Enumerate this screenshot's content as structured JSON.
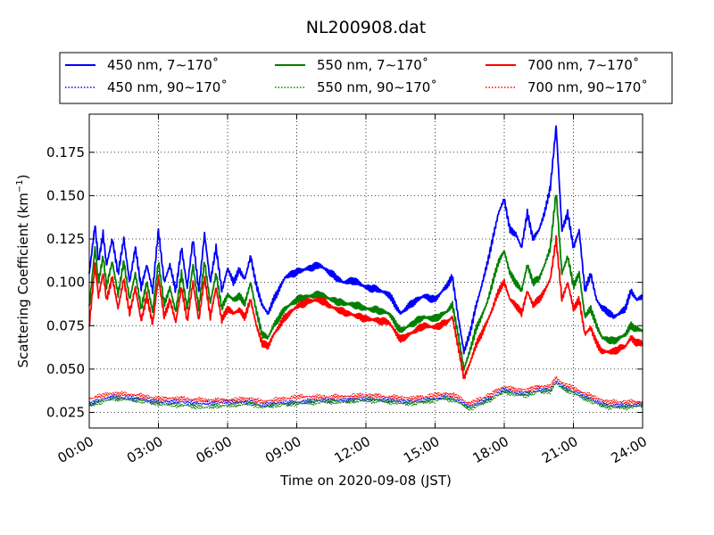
{
  "chart_data": {
    "type": "line",
    "title": "NL200908.dat",
    "xlabel": "Time on 2020-09-08 (JST)",
    "ylabel": "Scattering Coefficient (km",
    "ylabel_unit_exponent": "−1",
    "ylabel_close": ")",
    "xlim": [
      0,
      24
    ],
    "ylim": [
      0.016,
      0.197
    ],
    "x_ticks": [
      0,
      3,
      6,
      9,
      12,
      15,
      18,
      21,
      24
    ],
    "x_tick_labels": [
      "00:00",
      "03:00",
      "06:00",
      "09:00",
      "12:00",
      "15:00",
      "18:00",
      "21:00",
      "24:00"
    ],
    "y_ticks": [
      0.025,
      0.05,
      0.075,
      0.1,
      0.125,
      0.15,
      0.175
    ],
    "y_tick_labels": [
      "0.025",
      "0.050",
      "0.075",
      "0.100",
      "0.125",
      "0.150",
      "0.175"
    ],
    "grid": true,
    "legend_position": "top",
    "series": [
      {
        "name": "450 nm, 7∼170˚",
        "color": "#0000ff",
        "style": "solid",
        "x": [
          0,
          0.25,
          0.4,
          0.6,
          0.75,
          1,
          1.25,
          1.5,
          1.75,
          2,
          2.25,
          2.5,
          2.75,
          3,
          3.25,
          3.5,
          3.75,
          4,
          4.25,
          4.5,
          4.75,
          5,
          5.25,
          5.5,
          5.75,
          6,
          6.25,
          6.5,
          6.75,
          7,
          7.25,
          7.5,
          7.75,
          8,
          8.5,
          9,
          9.5,
          10,
          10.5,
          11,
          11.5,
          12,
          12.5,
          13,
          13.5,
          14,
          14.5,
          15,
          15.5,
          15.75,
          16,
          16.25,
          16.5,
          16.75,
          17,
          17.25,
          17.5,
          17.75,
          18,
          18.25,
          18.5,
          18.75,
          19,
          19.25,
          19.5,
          19.75,
          20,
          20.25,
          20.5,
          20.75,
          21,
          21.25,
          21.5,
          21.75,
          22,
          22.25,
          22.5,
          22.75,
          23,
          23.25,
          23.5,
          23.75,
          24
        ],
        "y": [
          0.105,
          0.133,
          0.112,
          0.128,
          0.11,
          0.125,
          0.105,
          0.125,
          0.1,
          0.12,
          0.097,
          0.11,
          0.095,
          0.13,
          0.1,
          0.11,
          0.095,
          0.12,
          0.097,
          0.125,
          0.095,
          0.128,
          0.1,
          0.12,
          0.095,
          0.108,
          0.1,
          0.107,
          0.102,
          0.115,
          0.098,
          0.087,
          0.082,
          0.09,
          0.103,
          0.106,
          0.108,
          0.11,
          0.105,
          0.1,
          0.101,
          0.097,
          0.096,
          0.093,
          0.082,
          0.088,
          0.092,
          0.09,
          0.098,
          0.103,
          0.08,
          0.06,
          0.07,
          0.085,
          0.097,
          0.11,
          0.125,
          0.14,
          0.148,
          0.13,
          0.128,
          0.12,
          0.14,
          0.125,
          0.13,
          0.14,
          0.155,
          0.19,
          0.13,
          0.14,
          0.12,
          0.13,
          0.095,
          0.105,
          0.09,
          0.085,
          0.083,
          0.08,
          0.082,
          0.085,
          0.095,
          0.09,
          0.092
        ]
      },
      {
        "name": "550 nm, 7∼170˚",
        "color": "#008000",
        "style": "solid",
        "x": [
          0,
          0.25,
          0.4,
          0.6,
          0.75,
          1,
          1.25,
          1.5,
          1.75,
          2,
          2.25,
          2.5,
          2.75,
          3,
          3.25,
          3.5,
          3.75,
          4,
          4.25,
          4.5,
          4.75,
          5,
          5.25,
          5.5,
          5.75,
          6,
          6.25,
          6.5,
          6.75,
          7,
          7.25,
          7.5,
          7.75,
          8,
          8.5,
          9,
          9.5,
          10,
          10.5,
          11,
          11.5,
          12,
          12.5,
          13,
          13.5,
          14,
          14.5,
          15,
          15.5,
          15.75,
          16,
          16.25,
          16.5,
          16.75,
          17,
          17.25,
          17.5,
          17.75,
          18,
          18.25,
          18.5,
          18.75,
          19,
          19.25,
          19.5,
          19.75,
          20,
          20.25,
          20.5,
          20.75,
          21,
          21.25,
          21.5,
          21.75,
          22,
          22.25,
          22.5,
          22.75,
          23,
          23.25,
          23.5,
          23.75,
          24
        ],
        "y": [
          0.085,
          0.12,
          0.1,
          0.115,
          0.098,
          0.112,
          0.093,
          0.112,
          0.09,
          0.105,
          0.085,
          0.1,
          0.083,
          0.112,
          0.087,
          0.097,
          0.083,
          0.105,
          0.085,
          0.11,
          0.085,
          0.112,
          0.088,
          0.105,
          0.085,
          0.093,
          0.09,
          0.092,
          0.088,
          0.1,
          0.083,
          0.07,
          0.068,
          0.075,
          0.085,
          0.09,
          0.092,
          0.093,
          0.09,
          0.088,
          0.087,
          0.085,
          0.084,
          0.082,
          0.072,
          0.076,
          0.08,
          0.079,
          0.083,
          0.087,
          0.07,
          0.05,
          0.06,
          0.072,
          0.08,
          0.088,
          0.1,
          0.112,
          0.118,
          0.105,
          0.1,
          0.095,
          0.11,
          0.1,
          0.102,
          0.11,
          0.12,
          0.152,
          0.105,
          0.115,
          0.098,
          0.105,
          0.08,
          0.085,
          0.075,
          0.068,
          0.067,
          0.066,
          0.068,
          0.07,
          0.075,
          0.073,
          0.072
        ]
      },
      {
        "name": "700 nm, 7∼170˚",
        "color": "#ff0000",
        "style": "solid",
        "x": [
          0,
          0.25,
          0.4,
          0.6,
          0.75,
          1,
          1.25,
          1.5,
          1.75,
          2,
          2.25,
          2.5,
          2.75,
          3,
          3.25,
          3.5,
          3.75,
          4,
          4.25,
          4.5,
          4.75,
          5,
          5.25,
          5.5,
          5.75,
          6,
          6.25,
          6.5,
          6.75,
          7,
          7.25,
          7.5,
          7.75,
          8,
          8.5,
          9,
          9.5,
          10,
          10.5,
          11,
          11.5,
          12,
          12.5,
          13,
          13.5,
          14,
          14.5,
          15,
          15.5,
          15.75,
          16,
          16.25,
          16.5,
          16.75,
          17,
          17.25,
          17.5,
          17.75,
          18,
          18.25,
          18.5,
          18.75,
          19,
          19.25,
          19.5,
          19.75,
          20,
          20.25,
          20.5,
          20.75,
          21,
          21.25,
          21.5,
          21.75,
          22,
          22.25,
          22.5,
          22.75,
          23,
          23.25,
          23.5,
          23.75,
          24
        ],
        "y": [
          0.075,
          0.11,
          0.092,
          0.105,
          0.09,
          0.103,
          0.085,
          0.102,
          0.082,
          0.097,
          0.078,
          0.092,
          0.076,
          0.103,
          0.08,
          0.09,
          0.077,
          0.097,
          0.078,
          0.1,
          0.078,
          0.103,
          0.08,
          0.097,
          0.078,
          0.085,
          0.082,
          0.084,
          0.08,
          0.09,
          0.075,
          0.065,
          0.063,
          0.07,
          0.08,
          0.086,
          0.089,
          0.09,
          0.086,
          0.083,
          0.081,
          0.079,
          0.078,
          0.077,
          0.067,
          0.071,
          0.075,
          0.074,
          0.077,
          0.08,
          0.063,
          0.045,
          0.053,
          0.063,
          0.07,
          0.077,
          0.085,
          0.095,
          0.1,
          0.09,
          0.087,
          0.082,
          0.095,
          0.087,
          0.09,
          0.095,
          0.102,
          0.125,
          0.09,
          0.1,
          0.085,
          0.09,
          0.07,
          0.074,
          0.065,
          0.06,
          0.06,
          0.06,
          0.062,
          0.063,
          0.068,
          0.065,
          0.065
        ]
      },
      {
        "name": "450 nm, 90∼170˚",
        "color": "#0000ff",
        "style": "dotted",
        "x": [
          0,
          1,
          2,
          3,
          4,
          5,
          6,
          7,
          7.5,
          8,
          9,
          10,
          11,
          12,
          13,
          14,
          15,
          15.5,
          16,
          16.5,
          17,
          17.5,
          18,
          18.5,
          19,
          19.5,
          20,
          20.25,
          20.5,
          21,
          21.5,
          22,
          22.5,
          23,
          23.5,
          24
        ],
        "y": [
          0.03,
          0.034,
          0.033,
          0.031,
          0.031,
          0.03,
          0.031,
          0.031,
          0.029,
          0.03,
          0.031,
          0.032,
          0.032,
          0.033,
          0.032,
          0.031,
          0.033,
          0.034,
          0.032,
          0.028,
          0.031,
          0.034,
          0.038,
          0.036,
          0.036,
          0.038,
          0.038,
          0.043,
          0.04,
          0.037,
          0.034,
          0.031,
          0.029,
          0.029,
          0.029,
          0.03
        ]
      },
      {
        "name": "550 nm, 90∼170˚",
        "color": "#008000",
        "style": "dotted",
        "x": [
          0,
          1,
          2,
          3,
          4,
          5,
          6,
          7,
          7.5,
          8,
          9,
          10,
          11,
          12,
          13,
          14,
          15,
          15.5,
          16,
          16.5,
          17,
          17.5,
          18,
          18.5,
          19,
          19.5,
          20,
          20.25,
          20.5,
          21,
          21.5,
          22,
          22.5,
          23,
          23.5,
          24
        ],
        "y": [
          0.029,
          0.033,
          0.032,
          0.03,
          0.029,
          0.028,
          0.029,
          0.03,
          0.028,
          0.029,
          0.03,
          0.031,
          0.031,
          0.032,
          0.031,
          0.03,
          0.032,
          0.033,
          0.031,
          0.027,
          0.03,
          0.033,
          0.037,
          0.035,
          0.035,
          0.037,
          0.037,
          0.042,
          0.039,
          0.036,
          0.033,
          0.03,
          0.028,
          0.028,
          0.028,
          0.029
        ]
      },
      {
        "name": "700 nm, 90∼170˚",
        "color": "#ff0000",
        "style": "dotted",
        "x": [
          0,
          1,
          2,
          3,
          4,
          5,
          6,
          7,
          7.5,
          8,
          9,
          10,
          11,
          12,
          13,
          14,
          15,
          15.5,
          16,
          16.5,
          17,
          17.5,
          18,
          18.5,
          19,
          19.5,
          20,
          20.25,
          20.5,
          21,
          21.5,
          22,
          22.5,
          23,
          23.5,
          24
        ],
        "y": [
          0.033,
          0.036,
          0.035,
          0.033,
          0.033,
          0.032,
          0.032,
          0.033,
          0.031,
          0.032,
          0.034,
          0.034,
          0.034,
          0.035,
          0.034,
          0.033,
          0.035,
          0.036,
          0.034,
          0.03,
          0.033,
          0.036,
          0.04,
          0.038,
          0.038,
          0.04,
          0.04,
          0.045,
          0.042,
          0.039,
          0.036,
          0.033,
          0.031,
          0.031,
          0.031,
          0.031
        ]
      }
    ]
  }
}
